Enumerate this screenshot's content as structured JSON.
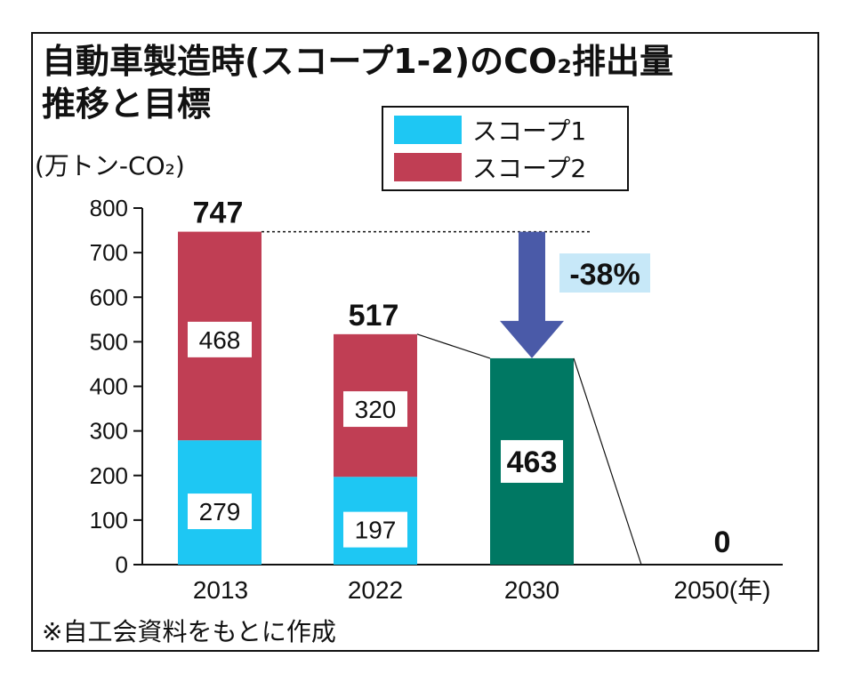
{
  "colors": {
    "scope1": "#1ec7f3",
    "scope2": "#c03e54",
    "target": "#007863",
    "arrow": "#4a5aa8",
    "reduction_bg": "#c7e8f8",
    "ink": "#111111"
  },
  "chart_data": {
    "type": "bar",
    "title_line1": "自動車製造時(スコープ1-2)のCO₂排出量",
    "title_line2": "推移と目標",
    "unit": "(万トン-CO₂)",
    "ylim": [
      0,
      800
    ],
    "yticks": [
      0,
      100,
      200,
      300,
      400,
      500,
      600,
      700,
      800
    ],
    "categories": [
      "2013",
      "2022",
      "2030",
      "2050"
    ],
    "year_suffix": "(年)",
    "series": [
      {
        "name": "スコープ1",
        "values": [
          279,
          197,
          null,
          null
        ]
      },
      {
        "name": "スコープ2",
        "values": [
          468,
          320,
          null,
          null
        ]
      }
    ],
    "targets": [
      {
        "category": "2030",
        "value": 463,
        "label": "463"
      },
      {
        "category": "2050",
        "value": 0,
        "label": "0"
      }
    ],
    "totals": [
      {
        "category": "2013",
        "value": 747,
        "label": "747"
      },
      {
        "category": "2022",
        "value": 517,
        "label": "517"
      }
    ],
    "reduction_label": "-38%",
    "source": "※自工会資料をもとに作成"
  }
}
